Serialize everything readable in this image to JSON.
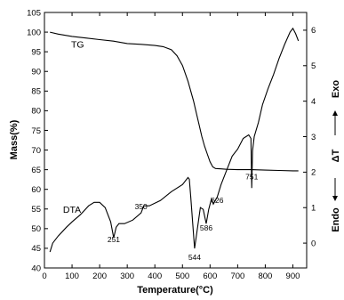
{
  "chart_data": {
    "type": "line",
    "xlabel": "Temperature(°C)",
    "ylabel_left": "Mass(%)",
    "ylabel_right": "ΔT",
    "right_axis_top_label": "Exo",
    "right_axis_bottom_label": "Endo",
    "xlim": [
      0,
      950
    ],
    "ylim_left": [
      40,
      105
    ],
    "ylim_right": [
      -0.7,
      6.5
    ],
    "x_ticks": [
      0,
      100,
      200,
      300,
      400,
      500,
      600,
      700,
      800,
      900
    ],
    "y_ticks_left": [
      40,
      45,
      50,
      55,
      60,
      65,
      70,
      75,
      80,
      85,
      90,
      95,
      100,
      105
    ],
    "y_ticks_right": [
      0,
      1,
      2,
      3,
      4,
      5,
      6
    ],
    "grid": false,
    "series": [
      {
        "name": "TG",
        "axis": "left",
        "x": [
          20,
          50,
          100,
          150,
          200,
          250,
          300,
          350,
          400,
          430,
          460,
          480,
          500,
          520,
          540,
          550,
          560,
          570,
          580,
          590,
          600,
          610,
          620,
          640,
          660,
          700,
          750,
          800,
          850,
          900,
          920
        ],
        "y": [
          100,
          99.5,
          98.9,
          98.5,
          98.1,
          97.7,
          97.1,
          96.9,
          96.6,
          96.3,
          95.5,
          94,
          91.5,
          87.5,
          82.5,
          79.5,
          76.5,
          73.5,
          71,
          69,
          67,
          65.7,
          65.3,
          65.2,
          65.1,
          65,
          65,
          64.9,
          64.8,
          64.7,
          64.7
        ]
      },
      {
        "name": "DTA",
        "axis": "right",
        "x": [
          20,
          30,
          50,
          80,
          100,
          130,
          160,
          180,
          200,
          220,
          240,
          251,
          260,
          270,
          290,
          320,
          350,
          360,
          380,
          420,
          460,
          500,
          520,
          525,
          530,
          544,
          555,
          565,
          575,
          586,
          595,
          605,
          612,
          626,
          640,
          660,
          680,
          700,
          720,
          740,
          748,
          751,
          754,
          760,
          775,
          790,
          810,
          830,
          850,
          870,
          890,
          900,
          910,
          920
        ],
        "y": [
          -0.25,
          0,
          0.2,
          0.45,
          0.6,
          0.8,
          1.05,
          1.15,
          1.15,
          1.0,
          0.6,
          0.15,
          0.45,
          0.55,
          0.55,
          0.65,
          0.85,
          1.05,
          1.05,
          1.2,
          1.45,
          1.65,
          1.85,
          1.8,
          1.3,
          -0.15,
          0.45,
          1.0,
          0.95,
          0.55,
          0.95,
          1.25,
          1.1,
          1.3,
          1.65,
          2.05,
          2.45,
          2.65,
          2.95,
          3.05,
          2.95,
          1.55,
          2.6,
          3.0,
          3.4,
          3.9,
          4.35,
          4.75,
          5.2,
          5.6,
          5.95,
          6.05,
          5.9,
          5.7
        ]
      }
    ],
    "annotations": [
      {
        "text": "TG",
        "x": 120,
        "y_left": 96
      },
      {
        "text": "DTA",
        "x": 100,
        "y_left": 54
      },
      {
        "text": "251",
        "x": 251,
        "y_left": 46.6
      },
      {
        "text": "350",
        "x": 350,
        "y_left": 54.9
      },
      {
        "text": "544",
        "x": 544,
        "y_left": 42
      },
      {
        "text": "586",
        "x": 586,
        "y_left": 49.5
      },
      {
        "text": "626",
        "x": 626,
        "y_left": 56.5
      },
      {
        "text": "751",
        "x": 751,
        "y_left": 62.5
      }
    ]
  }
}
